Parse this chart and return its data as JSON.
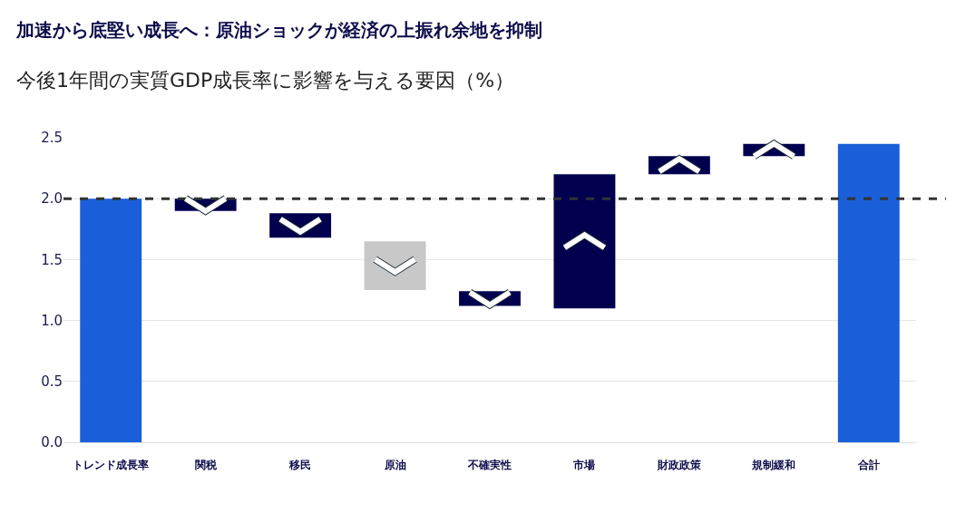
{
  "chart_data": {
    "type": "bar",
    "title": "加速から底堅い成長へ：原油ショックが経済の上振れ余地を抑制",
    "subtitle": "今後1年間の実質GDP成長率に影響を与える要因（%）",
    "categories": [
      "トレンド成長率",
      "関税",
      "移民",
      "原油",
      "不確実性",
      "市場",
      "財政政策",
      "規制緩和",
      "合計"
    ],
    "base": [
      0,
      2.0,
      1.88,
      1.65,
      1.24,
      1.1,
      2.2,
      2.35,
      0
    ],
    "values": [
      2.0,
      -0.1,
      -0.2,
      -0.4,
      -0.12,
      1.1,
      0.15,
      0.1,
      2.45
    ],
    "colors": [
      "#1a5fd9",
      "#00004f",
      "#00004f",
      "#c8c8c8",
      "#00004f",
      "#00004f",
      "#00004f",
      "#00004f",
      "#1a5fd9"
    ],
    "ylim": [
      0,
      2.5
    ],
    "yticks": [
      {
        "value": 0,
        "label": "0.0"
      },
      0.5,
      {
        "value": 1,
        "label": "1.0"
      },
      1.5,
      {
        "value": 2,
        "label": "2.0"
      },
      2.5
    ],
    "grid": "y",
    "ref_lines": [
      {
        "axis": "y",
        "value": 2.0,
        "color": "#333333",
        "line_style": "dashed"
      }
    ]
  }
}
